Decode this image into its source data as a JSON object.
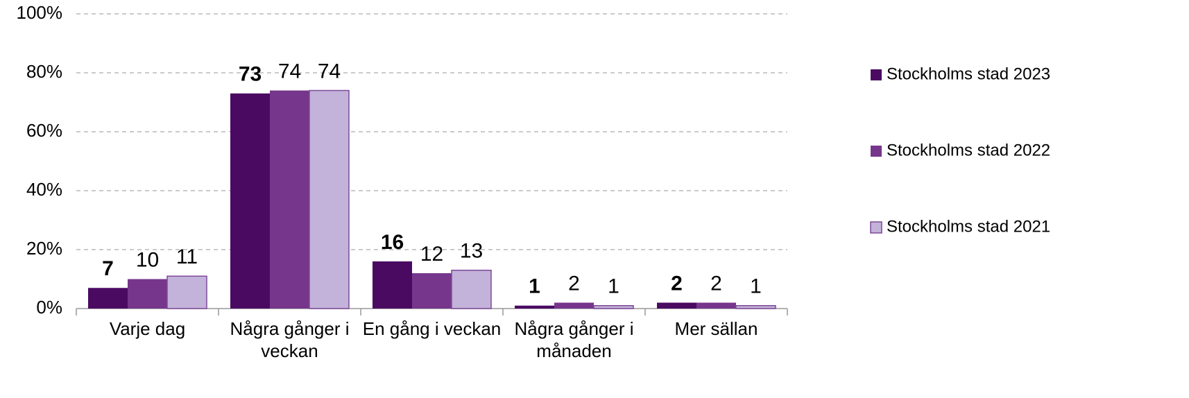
{
  "chart_data": {
    "type": "bar",
    "categories": [
      "Varje dag",
      "Några gånger i veckan",
      "En gång i veckan",
      "Några gånger i månaden",
      "Mer sällan"
    ],
    "series": [
      {
        "name": "Stockholms stad 2023",
        "color": "#4a0a62",
        "values": [
          7,
          73,
          16,
          1,
          2
        ]
      },
      {
        "name": "Stockholms stad 2022",
        "color": "#76368c",
        "values": [
          10,
          74,
          12,
          2,
          2
        ]
      },
      {
        "name": "Stockholms stad 2021",
        "color": "#c3b2d9",
        "values": [
          11,
          74,
          13,
          1,
          1
        ]
      }
    ],
    "ylim": [
      0,
      100
    ],
    "yticks": [
      {
        "value": 0,
        "label": "0%"
      },
      {
        "value": 20,
        "label": "20%"
      },
      {
        "value": 40,
        "label": "40%"
      },
      {
        "value": 60,
        "label": "60%"
      },
      {
        "value": 80,
        "label": "80%"
      },
      {
        "value": 100,
        "label": "100%"
      }
    ],
    "grid": true,
    "legend": "right"
  }
}
